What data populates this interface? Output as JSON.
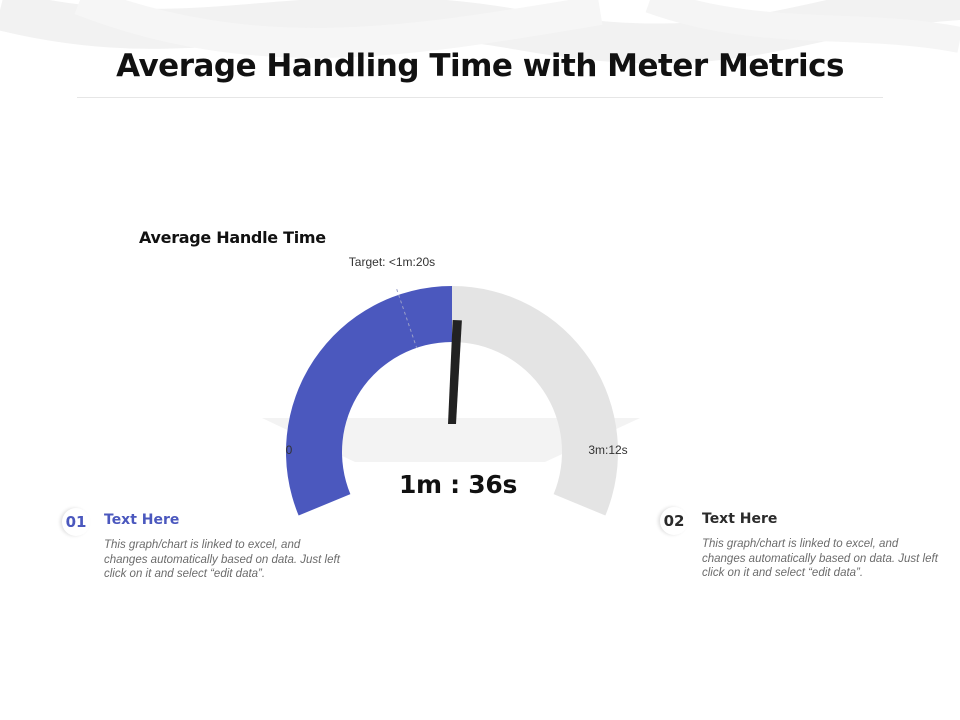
{
  "slide": {
    "title": "Average Handling Time with Meter Metrics"
  },
  "chart_data": {
    "type": "gauge",
    "title": "Average Handle Time",
    "min_label": "0",
    "max_label": "3m:12s",
    "min_seconds": 0,
    "max_seconds": 192,
    "value_seconds": 96,
    "value_label": "1m : 36s",
    "target_seconds": 80,
    "target_label": "Target: <1m:20s",
    "colors": {
      "fill": "#4b58be",
      "remainder": "#e4e4e4",
      "needle": "#222222"
    }
  },
  "notes": [
    {
      "number": "01",
      "heading": "Text Here",
      "body": "This graph/chart is linked to excel, and changes automatically based on data. Just left click on it and select “edit data”."
    },
    {
      "number": "02",
      "heading": "Text Here",
      "body": "This graph/chart is linked to excel, and changes automatically based on data. Just left click on it and select “edit data”."
    }
  ]
}
